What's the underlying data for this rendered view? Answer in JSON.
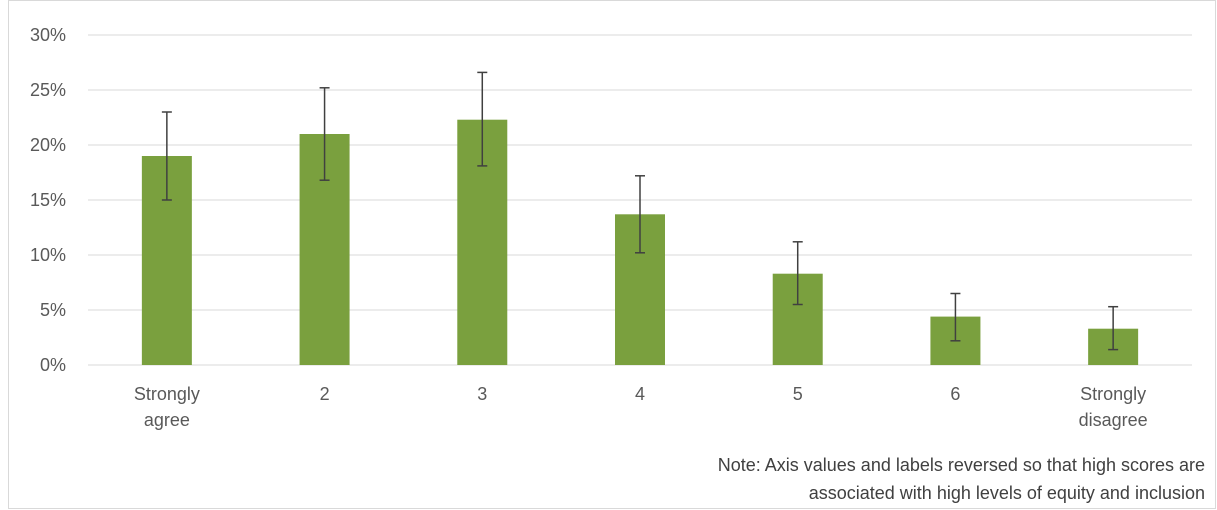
{
  "chart_data": {
    "type": "bar",
    "categories": [
      [
        "Strongly",
        "agree"
      ],
      [
        "2"
      ],
      [
        "3"
      ],
      [
        "4"
      ],
      [
        "5"
      ],
      [
        "6"
      ],
      [
        "Strongly",
        "disagree"
      ]
    ],
    "values": [
      0.19,
      0.21,
      0.223,
      0.137,
      0.083,
      0.044,
      0.033
    ],
    "error_low": [
      0.15,
      0.168,
      0.181,
      0.102,
      0.055,
      0.022,
      0.014
    ],
    "error_high": [
      0.23,
      0.252,
      0.266,
      0.172,
      0.112,
      0.065,
      0.053
    ],
    "ylim": [
      0,
      0.3
    ],
    "yticks": [
      0,
      0.05,
      0.1,
      0.15,
      0.2,
      0.25,
      0.3
    ],
    "ytick_labels": [
      "0%",
      "5%",
      "10%",
      "15%",
      "20%",
      "25%",
      "30%"
    ],
    "grid": true,
    "bar_color": "#7aa03e",
    "error_bar_color": "#404040",
    "gridline_color": "#d9d9d9"
  },
  "note": {
    "line1": "Note: Axis values and labels reversed so that high scores are",
    "line2": "associated with high levels of equity and inclusion"
  }
}
